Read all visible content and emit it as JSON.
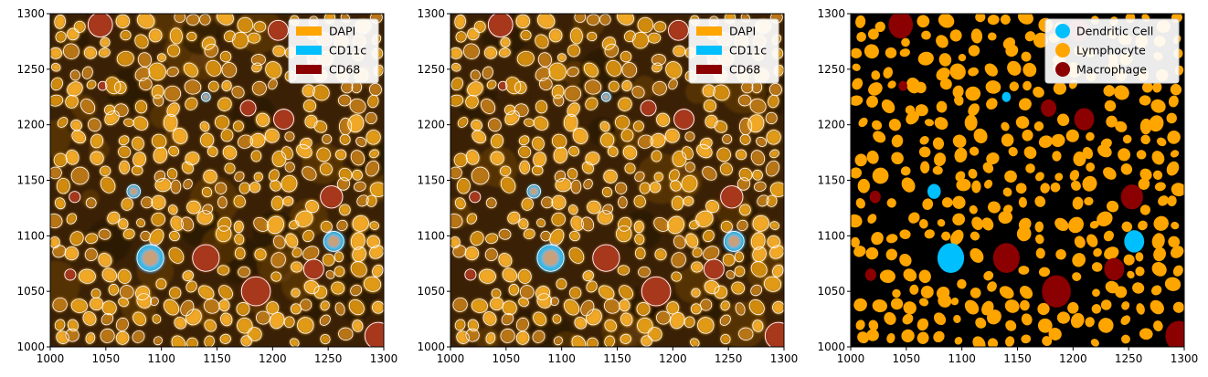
{
  "figure": {
    "panels": [
      {
        "id": "composite-1",
        "legend_style": "patch",
        "legend": [
          {
            "label": "DAPI",
            "color": "#FFA500"
          },
          {
            "label": "CD11c",
            "color": "#00BFFF"
          },
          {
            "label": "CD68",
            "color": "#8B0000"
          }
        ]
      },
      {
        "id": "composite-2",
        "legend_style": "patch",
        "legend": [
          {
            "label": "DAPI",
            "color": "#FFA500"
          },
          {
            "label": "CD11c",
            "color": "#00BFFF"
          },
          {
            "label": "CD68",
            "color": "#8B0000"
          }
        ]
      },
      {
        "id": "cell-types",
        "legend_style": "circle",
        "legend": [
          {
            "label": "Dendritic Cell",
            "color": "#00BFFF"
          },
          {
            "label": "Lymphocyte",
            "color": "#FFA500"
          },
          {
            "label": "Macrophage",
            "color": "#8B0000"
          }
        ]
      }
    ],
    "axes": {
      "xlim": [
        1000,
        1300
      ],
      "ylim": [
        1000,
        1300
      ],
      "x_ticks": [
        "1000",
        "1050",
        "1100",
        "1150",
        "1200",
        "1250",
        "1300"
      ],
      "y_ticks": [
        "1000",
        "1050",
        "1100",
        "1150",
        "1200",
        "1250",
        "1300"
      ]
    }
  }
}
